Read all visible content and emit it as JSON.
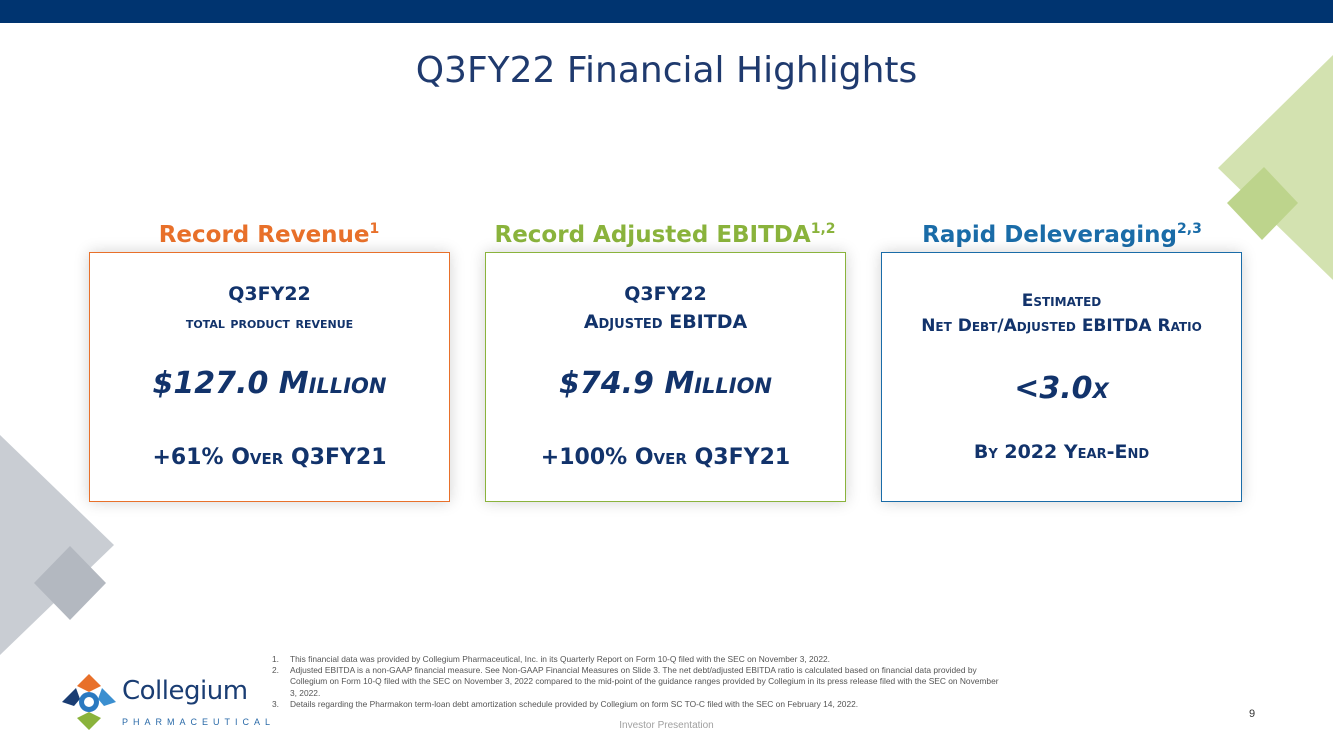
{
  "colors": {
    "navy": "#003470",
    "revenue_orange": "#e8702a",
    "ebitda_green": "#8ab33c",
    "delever_blue": "#1a6ca8",
    "text_navy": "#12336b"
  },
  "slide": {
    "title": "Q3FY22 Financial Highlights",
    "page_number": "9",
    "footer": "Investor Presentation"
  },
  "cards": [
    {
      "heading": "Record Revenue",
      "heading_sup": "1",
      "label1": "Q3FY22",
      "label2": "total product revenue",
      "value": "$127.0 Million",
      "detail": "+61% Over Q3FY21"
    },
    {
      "heading": "Record Adjusted EBITDA",
      "heading_sup": "1,2",
      "label1": "Q3FY22",
      "label2": "Adjusted EBITDA",
      "value": "$74.9 Million",
      "detail": "+100% Over Q3FY21"
    },
    {
      "heading": "Rapid Deleveraging",
      "heading_sup": "2,3",
      "label1": "Estimated",
      "label2": "Net Debt/Adjusted EBITDA Ratio",
      "value": "<3.0x",
      "detail": "By 2022 Year-End"
    }
  ],
  "footnotes": [
    {
      "num": "1.",
      "text": "This financial data was provided by Collegium Pharmaceutical, Inc. in its Quarterly Report on Form 10-Q filed with the SEC on November 3, 2022."
    },
    {
      "num": "2.",
      "text": "Adjusted EBITDA is a non-GAAP financial measure. See Non-GAAP Financial Measures on Slide 3. The net debt/adjusted EBITDA ratio is calculated based on financial data provided by Collegium on Form 10-Q filed with the SEC on November 3, 2022 compared to the mid-point of the guidance ranges provided by Collegium in its press release filed with the SEC on November 3, 2022."
    },
    {
      "num": "3.",
      "text": "Details regarding the Pharmakon term-loan debt amortization schedule provided by Collegium on form SC TO-C filed with the SEC on February 14, 2022."
    }
  ],
  "logo": {
    "wordmark": "Collegium",
    "tagline": "PHARMACEUTICAL"
  }
}
